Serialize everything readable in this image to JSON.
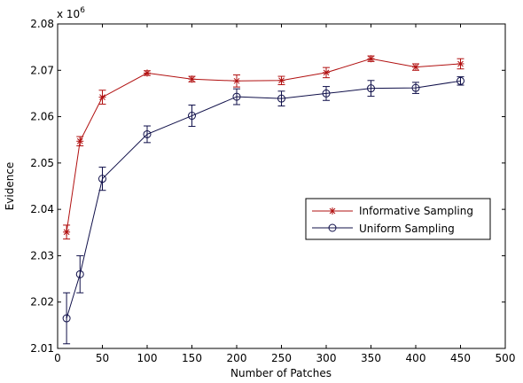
{
  "chart_data": {
    "type": "line",
    "title": "",
    "xlabel": "Number of Patches",
    "ylabel": "Evidence",
    "y_multiplier": "x 10",
    "y_multiplier_exp": "6",
    "xlim": [
      0,
      500
    ],
    "ylim": [
      2.01,
      2.08
    ],
    "xticks": [
      "0",
      "50",
      "100",
      "150",
      "200",
      "250",
      "300",
      "350",
      "400",
      "450",
      "500"
    ],
    "yticks": [
      "2.01",
      "2.02",
      "2.03",
      "2.04",
      "2.05",
      "2.06",
      "2.07",
      "2.08"
    ],
    "grid": false,
    "legend_position": "right",
    "x": [
      10,
      25,
      50,
      100,
      150,
      200,
      250,
      300,
      350,
      400,
      450
    ],
    "series": [
      {
        "name": "Informative Sampling",
        "color": "#b11010",
        "marker": "star",
        "values": [
          2.0351,
          2.0547,
          2.0642,
          2.0694,
          2.0681,
          2.0677,
          2.0678,
          2.0695,
          2.0725,
          2.0707,
          2.0714
        ],
        "errors": [
          0.0015,
          0.001,
          0.0015,
          0.0005,
          0.0006,
          0.0013,
          0.0009,
          0.0011,
          0.0006,
          0.0007,
          0.0011
        ]
      },
      {
        "name": "Uniform Sampling",
        "color": "#10104a",
        "marker": "circle",
        "values": [
          2.0165,
          2.026,
          2.0466,
          2.0562,
          2.0602,
          2.0643,
          2.0639,
          2.065,
          2.0661,
          2.0662,
          2.0677
        ],
        "errors": [
          0.0055,
          0.004,
          0.0025,
          0.0018,
          0.0023,
          0.0017,
          0.0016,
          0.0015,
          0.0017,
          0.0012,
          0.0009
        ]
      }
    ]
  }
}
